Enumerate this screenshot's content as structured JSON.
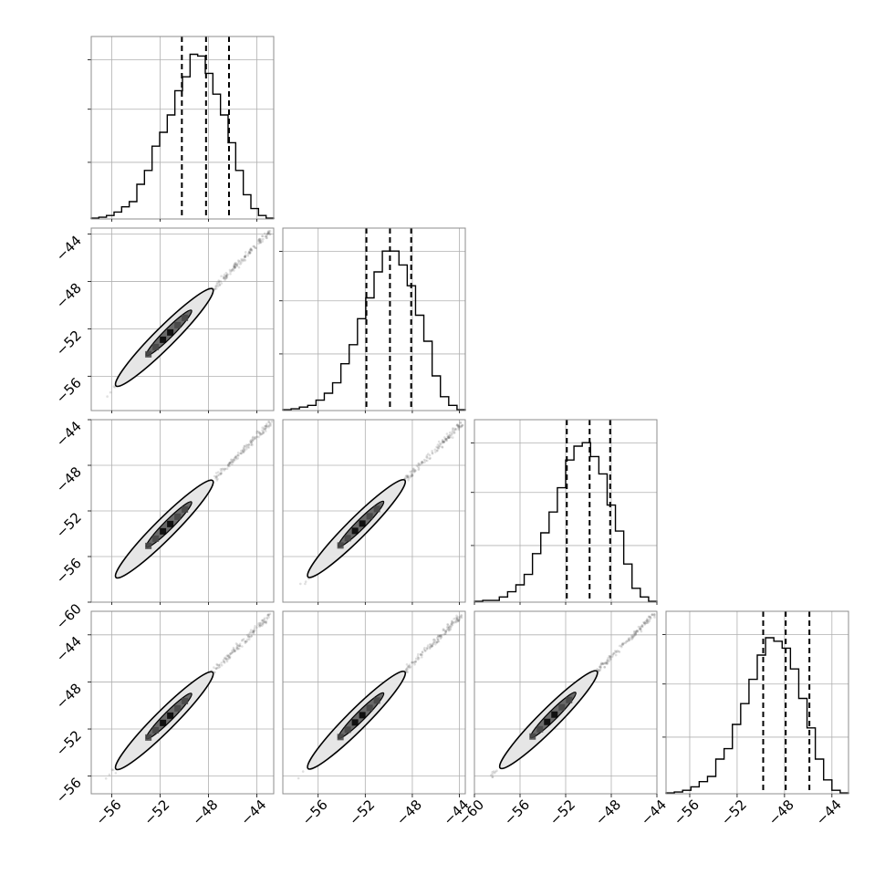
{
  "chart_data": {
    "type": "corner",
    "n_params": 4,
    "quantile_lines": [
      [
        -50.2,
        -48.2,
        -46.3
      ],
      [
        -51.9,
        -49.9,
        -48.1
      ],
      [
        -51.9,
        -49.9,
        -48.1
      ],
      [
        -49.8,
        -47.9,
        -45.9
      ]
    ],
    "axis_ranges": [
      [
        -57.7,
        -42.6
      ],
      [
        -59.0,
        -43.5
      ],
      [
        -60.0,
        -44.0
      ],
      [
        -58.0,
        -42.6
      ]
    ],
    "axis_ranges_as_y": [
      [
        -57.7,
        -42.6
      ],
      [
        -58.9,
        -43.5
      ],
      [
        -60.0,
        -44.0
      ],
      [
        -57.5,
        -42.0
      ]
    ],
    "x_ticks": [
      [
        -56,
        -52,
        -48,
        -44
      ],
      [
        -56,
        -52,
        -48,
        -44
      ],
      [
        -60,
        -56,
        -52,
        -48,
        -44
      ],
      [
        -56,
        -52,
        -48,
        -44
      ]
    ],
    "y_ticks": [
      [],
      [
        -44,
        -48,
        -52,
        -56
      ],
      [
        -44,
        -48,
        -52,
        -56,
        -60
      ],
      [
        -44,
        -48,
        -52,
        -56
      ]
    ],
    "histograms": [
      [
        0.005,
        0.01,
        0.02,
        0.04,
        0.07,
        0.1,
        0.2,
        0.28,
        0.42,
        0.5,
        0.6,
        0.74,
        0.82,
        0.95,
        0.94,
        0.84,
        0.72,
        0.6,
        0.44,
        0.28,
        0.14,
        0.06,
        0.02,
        0.005
      ],
      [
        0.005,
        0.01,
        0.02,
        0.03,
        0.06,
        0.1,
        0.16,
        0.27,
        0.38,
        0.53,
        0.65,
        0.8,
        0.92,
        0.92,
        0.84,
        0.72,
        0.55,
        0.4,
        0.2,
        0.08,
        0.03,
        0.005
      ],
      [
        0.005,
        0.01,
        0.01,
        0.03,
        0.06,
        0.1,
        0.16,
        0.28,
        0.4,
        0.52,
        0.66,
        0.82,
        0.9,
        0.92,
        0.84,
        0.74,
        0.56,
        0.41,
        0.22,
        0.08,
        0.03,
        0.005
      ],
      [
        0.005,
        0.01,
        0.02,
        0.04,
        0.07,
        0.1,
        0.2,
        0.26,
        0.4,
        0.52,
        0.66,
        0.8,
        0.9,
        0.88,
        0.84,
        0.72,
        0.55,
        0.38,
        0.2,
        0.08,
        0.02,
        0.005
      ]
    ],
    "grid": true,
    "title": "",
    "xlabel": "",
    "ylabel": ""
  }
}
